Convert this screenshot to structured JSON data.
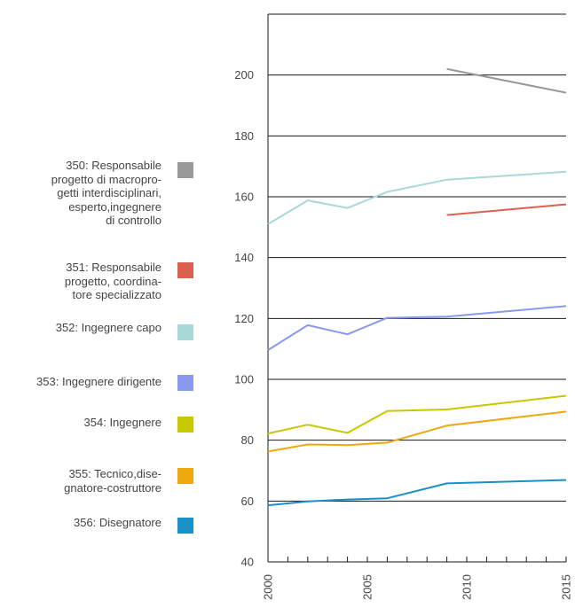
{
  "chart_data": {
    "type": "line",
    "title": "",
    "xlabel": "",
    "ylabel": "",
    "xlim": [
      2000,
      2015
    ],
    "ylim": [
      40,
      220
    ],
    "y_ticks": [
      40,
      60,
      80,
      100,
      120,
      140,
      160,
      180,
      200
    ],
    "x_tick_labels": [
      "2000",
      "2005",
      "2010",
      "2015"
    ],
    "x_ticks": [
      2000,
      2005,
      2010,
      2015
    ],
    "x_minor_ticks": [
      2000,
      2001,
      2002,
      2003,
      2004,
      2005,
      2006,
      2007,
      2008,
      2009,
      2010,
      2011,
      2012,
      2013,
      2014,
      2015
    ],
    "grid": "horizontal",
    "legend_position": "left",
    "series": [
      {
        "name": "350: Responsabile\nprogetto di macropro-\ngetti interdisciplinari,\nesperto,ingegnere\ndi controllo",
        "color": "#999999",
        "points": [
          [
            2009,
            202
          ],
          [
            2015,
            194.2
          ]
        ]
      },
      {
        "name": "351: Responsabile\nprogetto, coordina-\ntore specializzato",
        "color": "#dc6050",
        "points": [
          [
            2009,
            154
          ],
          [
            2015,
            157.5
          ]
        ]
      },
      {
        "name": "352: Ingegnere capo",
        "color": "#a8d8d8",
        "points": [
          [
            2000,
            151
          ],
          [
            2002,
            158.8
          ],
          [
            2004,
            156.3
          ],
          [
            2006,
            161.6
          ],
          [
            2009,
            165.6
          ],
          [
            2015,
            168.2
          ]
        ]
      },
      {
        "name": "353: Ingegnere dirigente",
        "color": "#8899ee",
        "points": [
          [
            2000,
            109.6
          ],
          [
            2002,
            117.8
          ],
          [
            2004,
            114.8
          ],
          [
            2006,
            120.2
          ],
          [
            2009,
            120.6
          ],
          [
            2015,
            124.1
          ]
        ]
      },
      {
        "name": "354: Ingegnere",
        "color": "#c8c800",
        "points": [
          [
            2000,
            82.2
          ],
          [
            2002,
            85.1
          ],
          [
            2004,
            82.4
          ],
          [
            2006,
            89.6
          ],
          [
            2009,
            90.1
          ],
          [
            2015,
            94.6
          ]
        ]
      },
      {
        "name": "355: Tecnico,dise-\ngnatore-costruttore",
        "color": "#f0a810",
        "points": [
          [
            2000,
            76.3
          ],
          [
            2002,
            78.6
          ],
          [
            2004,
            78.4
          ],
          [
            2006,
            79.2
          ],
          [
            2009,
            84.8
          ],
          [
            2015,
            89.4
          ]
        ]
      },
      {
        "name": "356: Disegnatore",
        "color": "#1a90c8",
        "points": [
          [
            2000,
            58.6
          ],
          [
            2002,
            59.9
          ],
          [
            2004,
            60.5
          ],
          [
            2006,
            60.9
          ],
          [
            2009,
            65.8
          ],
          [
            2015,
            66.9
          ]
        ]
      }
    ]
  }
}
